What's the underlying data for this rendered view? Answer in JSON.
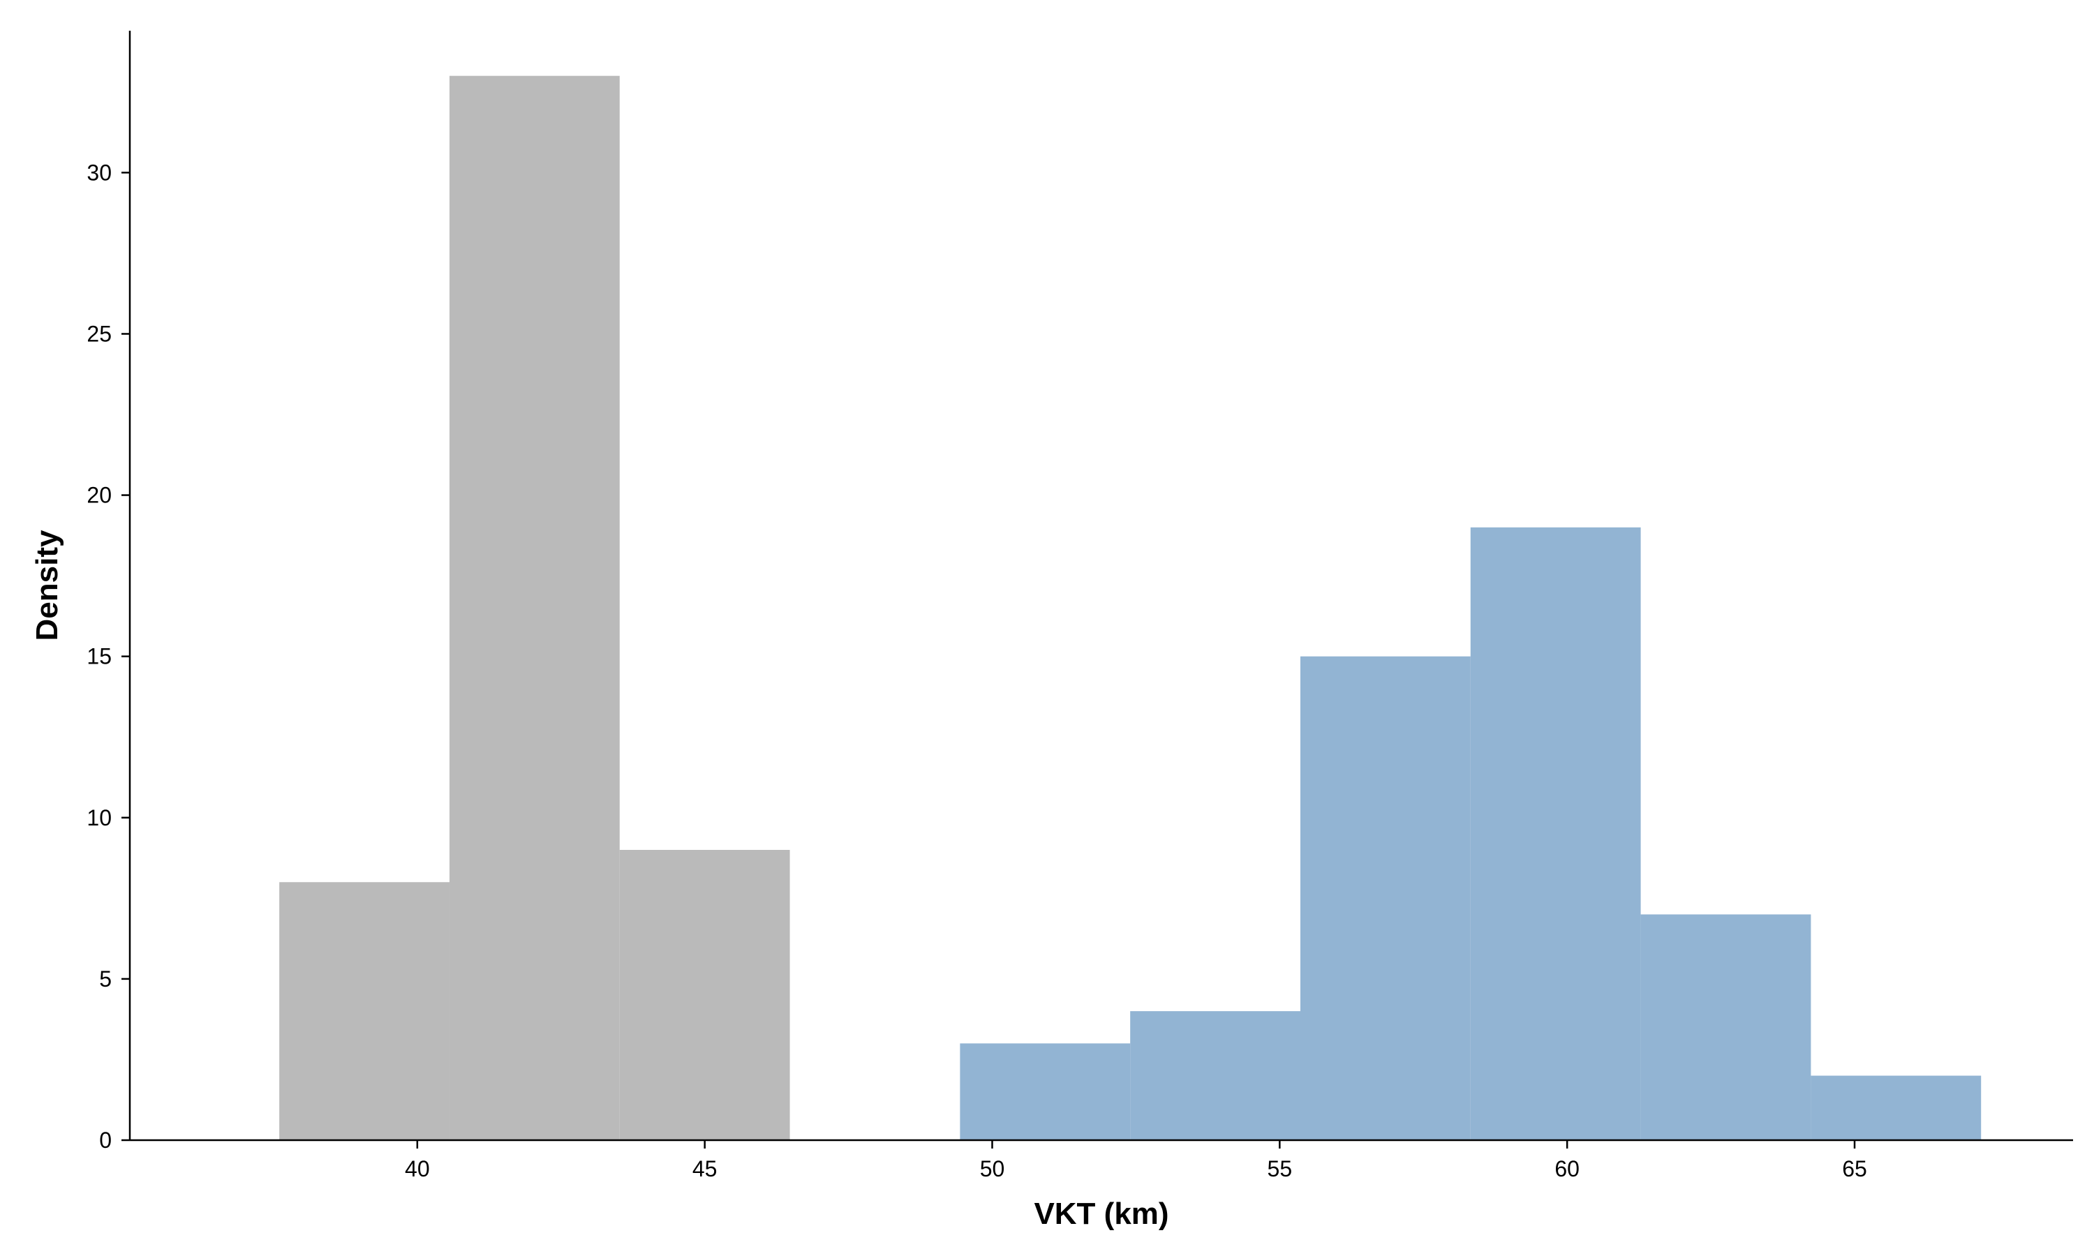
{
  "chart_data": {
    "type": "bar",
    "subtype": "histogram",
    "xlabel": "VKT (km)",
    "ylabel": "Density",
    "xlim": [
      35,
      68.8
    ],
    "ylim": [
      0,
      34.4
    ],
    "xticks": [
      40,
      45,
      50,
      55,
      60,
      65
    ],
    "yticks": [
      0,
      5,
      10,
      15,
      20,
      25,
      30
    ],
    "grid": false,
    "legend": "none",
    "series": [
      {
        "color": "#bababa",
        "bins": [
          {
            "x0": 37.6,
            "x1": 40.56,
            "value": 8
          },
          {
            "x0": 40.56,
            "x1": 43.52,
            "value": 33
          },
          {
            "x0": 43.52,
            "x1": 46.48,
            "value": 9
          }
        ]
      },
      {
        "color": "#92b4d3",
        "bins": [
          {
            "x0": 49.44,
            "x1": 52.4,
            "value": 3
          },
          {
            "x0": 52.4,
            "x1": 55.36,
            "value": 4
          },
          {
            "x0": 55.36,
            "x1": 58.32,
            "value": 15
          },
          {
            "x0": 58.32,
            "x1": 61.28,
            "value": 19
          },
          {
            "x0": 61.28,
            "x1": 64.24,
            "value": 7
          },
          {
            "x0": 64.24,
            "x1": 67.2,
            "value": 2
          }
        ]
      }
    ]
  }
}
